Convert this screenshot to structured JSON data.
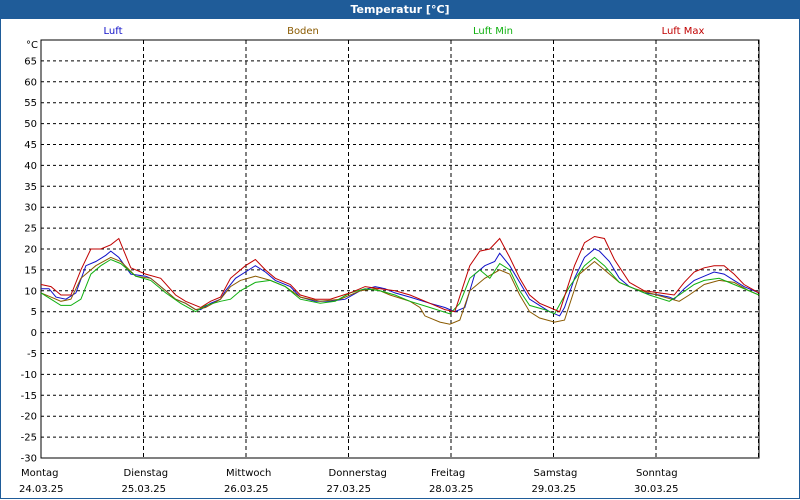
{
  "window": {
    "title": "Temperatur [°C]"
  },
  "chart_data": {
    "type": "line",
    "title": "Temperatur [°C]",
    "ylabel": "°C",
    "ylim": [
      -30,
      70
    ],
    "yticks": [
      65,
      60,
      55,
      50,
      45,
      40,
      35,
      30,
      25,
      20,
      15,
      10,
      5,
      0,
      -5,
      -10,
      -15,
      -20,
      -25,
      -30
    ],
    "xlim": [
      0,
      7.2
    ],
    "days": [
      {
        "weekday": "Montag",
        "date": "24.03.25"
      },
      {
        "weekday": "Dienstag",
        "date": "25.03.25"
      },
      {
        "weekday": "Mittwoch",
        "date": "26.03.25"
      },
      {
        "weekday": "Donnerstag",
        "date": "27.03.25"
      },
      {
        "weekday": "Freitag",
        "date": "28.03.25"
      },
      {
        "weekday": "Samstag",
        "date": "29.03.25"
      },
      {
        "weekday": "Sonntag",
        "date": "30.03.25"
      }
    ],
    "series": [
      {
        "name": "Luft",
        "color": "#1010c8",
        "points": [
          [
            0.0,
            10.5
          ],
          [
            0.08,
            10.5
          ],
          [
            0.15,
            8.5
          ],
          [
            0.25,
            8.0
          ],
          [
            0.35,
            9.5
          ],
          [
            0.45,
            16
          ],
          [
            0.55,
            17
          ],
          [
            0.65,
            18.5
          ],
          [
            0.7,
            19.5
          ],
          [
            0.78,
            18
          ],
          [
            0.9,
            14
          ],
          [
            1.05,
            13.5
          ],
          [
            1.1,
            13
          ],
          [
            1.25,
            10
          ],
          [
            1.35,
            8
          ],
          [
            1.45,
            7
          ],
          [
            1.55,
            5.5
          ],
          [
            1.6,
            5.5
          ],
          [
            1.7,
            7
          ],
          [
            1.8,
            8
          ],
          [
            1.85,
            10
          ],
          [
            1.95,
            13
          ],
          [
            2.05,
            14.5
          ],
          [
            2.15,
            16
          ],
          [
            2.25,
            14.5
          ],
          [
            2.35,
            12.5
          ],
          [
            2.5,
            11
          ],
          [
            2.6,
            8.5
          ],
          [
            2.75,
            7.5
          ],
          [
            2.9,
            7.5
          ],
          [
            3.05,
            8
          ],
          [
            3.2,
            10
          ],
          [
            3.35,
            11
          ],
          [
            3.45,
            10.5
          ],
          [
            3.55,
            9.5
          ],
          [
            3.7,
            8.5
          ],
          [
            3.9,
            7
          ],
          [
            4.05,
            6
          ],
          [
            4.15,
            5
          ],
          [
            4.25,
            6
          ],
          [
            4.35,
            14
          ],
          [
            4.45,
            16
          ],
          [
            4.55,
            17
          ],
          [
            4.6,
            19
          ],
          [
            4.7,
            16
          ],
          [
            4.8,
            12
          ],
          [
            4.9,
            8
          ],
          [
            5.0,
            6.5
          ],
          [
            5.1,
            5
          ],
          [
            5.2,
            4
          ],
          [
            5.25,
            6
          ],
          [
            5.35,
            13
          ],
          [
            5.45,
            18
          ],
          [
            5.55,
            20
          ],
          [
            5.6,
            19.5
          ],
          [
            5.7,
            17
          ],
          [
            5.8,
            13
          ],
          [
            5.9,
            11
          ],
          [
            6.05,
            9.5
          ],
          [
            6.2,
            9
          ],
          [
            6.3,
            8.5
          ],
          [
            6.35,
            8
          ],
          [
            6.45,
            10.5
          ],
          [
            6.55,
            12.5
          ],
          [
            6.65,
            13.5
          ],
          [
            6.75,
            14.5
          ],
          [
            6.85,
            14
          ],
          [
            6.95,
            12.5
          ],
          [
            7.05,
            11
          ],
          [
            7.15,
            10
          ],
          [
            7.2,
            9.5
          ]
        ]
      },
      {
        "name": "Boden",
        "color": "#8a5a00",
        "points": [
          [
            0.0,
            9.5
          ],
          [
            0.1,
            8.5
          ],
          [
            0.2,
            7.5
          ],
          [
            0.3,
            8
          ],
          [
            0.4,
            13
          ],
          [
            0.55,
            16
          ],
          [
            0.7,
            18
          ],
          [
            0.8,
            17
          ],
          [
            0.95,
            13.5
          ],
          [
            1.1,
            13
          ],
          [
            1.25,
            10
          ],
          [
            1.35,
            8
          ],
          [
            1.45,
            7
          ],
          [
            1.55,
            5.5
          ],
          [
            1.65,
            6
          ],
          [
            1.8,
            8
          ],
          [
            1.9,
            11
          ],
          [
            2.0,
            12.5
          ],
          [
            2.15,
            13.5
          ],
          [
            2.3,
            12.5
          ],
          [
            2.45,
            11
          ],
          [
            2.6,
            8.5
          ],
          [
            2.8,
            7.5
          ],
          [
            3.0,
            8
          ],
          [
            3.2,
            10
          ],
          [
            3.35,
            10.5
          ],
          [
            3.5,
            9
          ],
          [
            3.7,
            7.5
          ],
          [
            3.8,
            6
          ],
          [
            3.85,
            4
          ],
          [
            4.0,
            2.5
          ],
          [
            4.1,
            2
          ],
          [
            4.2,
            3
          ],
          [
            4.3,
            10
          ],
          [
            4.45,
            13
          ],
          [
            4.6,
            15
          ],
          [
            4.7,
            14
          ],
          [
            4.8,
            9
          ],
          [
            4.9,
            5
          ],
          [
            5.0,
            3.5
          ],
          [
            5.15,
            2.5
          ],
          [
            5.25,
            3
          ],
          [
            5.4,
            14
          ],
          [
            5.55,
            17
          ],
          [
            5.65,
            15
          ],
          [
            5.8,
            12
          ],
          [
            5.95,
            10.5
          ],
          [
            6.1,
            9.5
          ],
          [
            6.25,
            8.5
          ],
          [
            6.4,
            7.5
          ],
          [
            6.5,
            9
          ],
          [
            6.65,
            11.5
          ],
          [
            6.8,
            12.5
          ],
          [
            6.95,
            12
          ],
          [
            7.1,
            10
          ],
          [
            7.2,
            9
          ]
        ]
      },
      {
        "name": "Luft Min",
        "color": "#10b010",
        "points": [
          [
            0.0,
            9.5
          ],
          [
            0.1,
            8
          ],
          [
            0.2,
            6.5
          ],
          [
            0.3,
            6.5
          ],
          [
            0.4,
            8
          ],
          [
            0.5,
            14
          ],
          [
            0.6,
            16
          ],
          [
            0.7,
            17.5
          ],
          [
            0.8,
            16.5
          ],
          [
            0.95,
            13.5
          ],
          [
            1.1,
            12.5
          ],
          [
            1.25,
            9.5
          ],
          [
            1.4,
            7
          ],
          [
            1.55,
            5
          ],
          [
            1.65,
            6.5
          ],
          [
            1.8,
            7.5
          ],
          [
            1.9,
            8
          ],
          [
            2.0,
            10
          ],
          [
            2.15,
            12
          ],
          [
            2.3,
            12.5
          ],
          [
            2.45,
            11
          ],
          [
            2.6,
            8
          ],
          [
            2.8,
            7
          ],
          [
            2.95,
            7.5
          ],
          [
            3.1,
            9.5
          ],
          [
            3.25,
            10.5
          ],
          [
            3.4,
            10
          ],
          [
            3.55,
            9
          ],
          [
            3.7,
            7.5
          ],
          [
            3.9,
            6
          ],
          [
            4.1,
            4.5
          ],
          [
            4.2,
            7
          ],
          [
            4.3,
            13
          ],
          [
            4.4,
            15
          ],
          [
            4.5,
            13
          ],
          [
            4.6,
            16.5
          ],
          [
            4.7,
            15
          ],
          [
            4.8,
            10
          ],
          [
            4.9,
            6.5
          ],
          [
            5.05,
            5.5
          ],
          [
            5.15,
            4.5
          ],
          [
            5.3,
            11
          ],
          [
            5.45,
            16
          ],
          [
            5.55,
            18
          ],
          [
            5.65,
            16
          ],
          [
            5.8,
            12
          ],
          [
            5.95,
            10.5
          ],
          [
            6.1,
            9
          ],
          [
            6.3,
            7.5
          ],
          [
            6.4,
            9
          ],
          [
            6.55,
            11.5
          ],
          [
            6.65,
            12.5
          ],
          [
            6.8,
            13
          ],
          [
            6.95,
            11.5
          ],
          [
            7.1,
            10
          ],
          [
            7.2,
            9
          ]
        ]
      },
      {
        "name": "Luft Max",
        "color": "#c00000",
        "points": [
          [
            0.0,
            11.5
          ],
          [
            0.1,
            11
          ],
          [
            0.2,
            9
          ],
          [
            0.3,
            9
          ],
          [
            0.4,
            15
          ],
          [
            0.5,
            20
          ],
          [
            0.6,
            20
          ],
          [
            0.7,
            21
          ],
          [
            0.78,
            22.5
          ],
          [
            0.9,
            15.5
          ],
          [
            1.05,
            14
          ],
          [
            1.2,
            13
          ],
          [
            1.35,
            9
          ],
          [
            1.45,
            7.5
          ],
          [
            1.6,
            6
          ],
          [
            1.7,
            7.5
          ],
          [
            1.8,
            8.5
          ],
          [
            1.9,
            13
          ],
          [
            2.05,
            16
          ],
          [
            2.15,
            17.5
          ],
          [
            2.25,
            15
          ],
          [
            2.35,
            13
          ],
          [
            2.5,
            11.5
          ],
          [
            2.6,
            9
          ],
          [
            2.75,
            8
          ],
          [
            2.9,
            8
          ],
          [
            3.1,
            9.5
          ],
          [
            3.25,
            11
          ],
          [
            3.4,
            10.5
          ],
          [
            3.55,
            10
          ],
          [
            3.7,
            9
          ],
          [
            3.9,
            7
          ],
          [
            4.05,
            5.5
          ],
          [
            4.15,
            5
          ],
          [
            4.3,
            16
          ],
          [
            4.4,
            19.5
          ],
          [
            4.5,
            20
          ],
          [
            4.6,
            22.5
          ],
          [
            4.7,
            18
          ],
          [
            4.8,
            13
          ],
          [
            4.9,
            9
          ],
          [
            5.0,
            7
          ],
          [
            5.1,
            6
          ],
          [
            5.2,
            5
          ],
          [
            5.35,
            16
          ],
          [
            5.45,
            21.5
          ],
          [
            5.55,
            23
          ],
          [
            5.65,
            22.5
          ],
          [
            5.75,
            17.5
          ],
          [
            5.9,
            12
          ],
          [
            6.05,
            10
          ],
          [
            6.2,
            9.5
          ],
          [
            6.35,
            9
          ],
          [
            6.45,
            12
          ],
          [
            6.55,
            14.5
          ],
          [
            6.65,
            15.5
          ],
          [
            6.75,
            16
          ],
          [
            6.85,
            16
          ],
          [
            6.95,
            14
          ],
          [
            7.05,
            11.5
          ],
          [
            7.2,
            9.5
          ]
        ]
      }
    ]
  }
}
